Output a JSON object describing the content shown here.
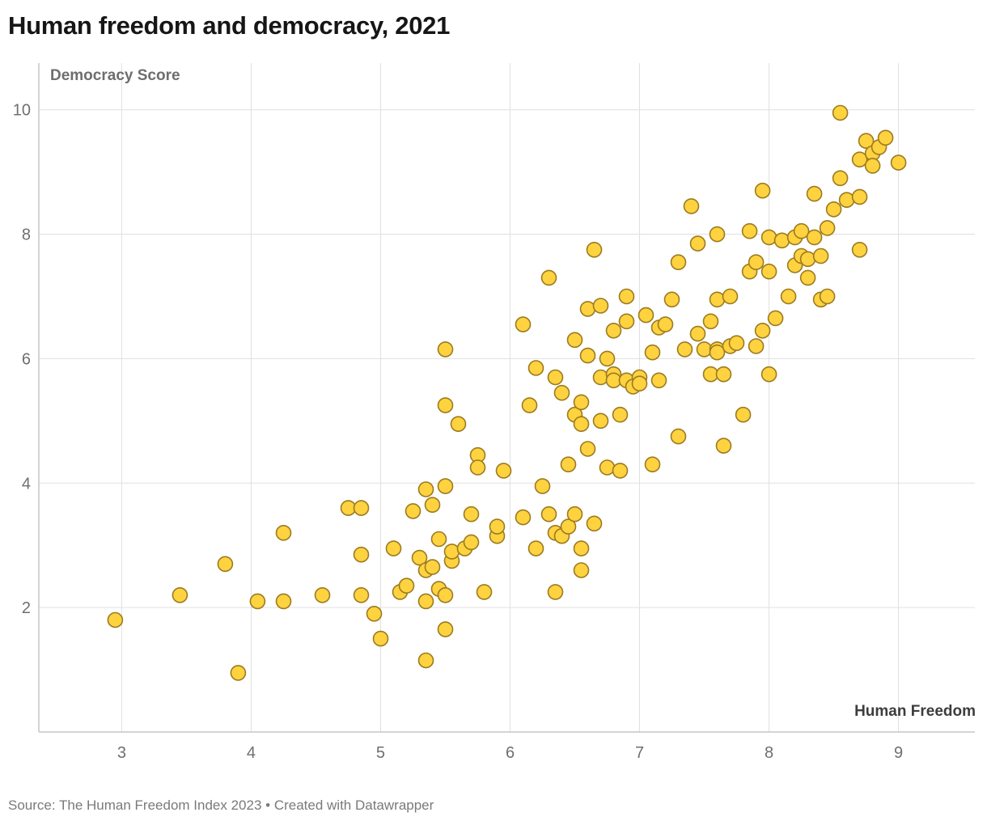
{
  "header": {
    "title": "Human freedom and democracy, 2021"
  },
  "axes": {
    "y_label": "Democracy Score",
    "x_label": "Human Freedom"
  },
  "footer": {
    "source": "Source: The Human Freedom Index 2023 • Created with Datawrapper"
  },
  "chart_data": {
    "type": "scatter",
    "title": "Human freedom and democracy, 2021",
    "xlabel": "Human Freedom",
    "ylabel": "Democracy Score",
    "xlim": [
      2.36,
      9.59
    ],
    "ylim": [
      0,
      10.75
    ],
    "x_ticks": [
      3,
      4,
      5,
      6,
      7,
      8,
      9
    ],
    "y_ticks": [
      2,
      4,
      6,
      8,
      10
    ],
    "grid": true,
    "legend": "none",
    "colors": {
      "marker_fill": "#FFD23F",
      "marker_stroke": "#9A7B20",
      "grid": "#e0e0e0",
      "axis": "#c6c6c6",
      "tick_text": "#6f6f6f"
    },
    "marker": {
      "radius": 9,
      "stroke_width": 1.6
    },
    "points": [
      [
        2.95,
        1.8
      ],
      [
        3.45,
        2.2
      ],
      [
        3.8,
        2.7
      ],
      [
        3.9,
        0.95
      ],
      [
        4.05,
        2.1
      ],
      [
        4.25,
        2.1
      ],
      [
        4.25,
        3.2
      ],
      [
        4.55,
        2.2
      ],
      [
        4.75,
        3.6
      ],
      [
        4.85,
        3.6
      ],
      [
        4.85,
        2.85
      ],
      [
        4.85,
        2.2
      ],
      [
        4.95,
        1.9
      ],
      [
        5.0,
        1.5
      ],
      [
        5.1,
        2.95
      ],
      [
        5.15,
        2.25
      ],
      [
        5.2,
        2.35
      ],
      [
        5.25,
        3.55
      ],
      [
        5.3,
        2.8
      ],
      [
        5.35,
        2.1
      ],
      [
        5.35,
        2.6
      ],
      [
        5.35,
        1.15
      ],
      [
        5.4,
        3.65
      ],
      [
        5.35,
        3.9
      ],
      [
        5.4,
        2.65
      ],
      [
        5.45,
        2.3
      ],
      [
        5.45,
        3.1
      ],
      [
        5.5,
        5.25
      ],
      [
        5.5,
        2.2
      ],
      [
        5.5,
        1.65
      ],
      [
        5.5,
        3.95
      ],
      [
        5.5,
        6.15
      ],
      [
        5.55,
        2.75
      ],
      [
        5.55,
        2.9
      ],
      [
        5.6,
        4.95
      ],
      [
        5.65,
        2.95
      ],
      [
        5.7,
        3.05
      ],
      [
        5.7,
        3.5
      ],
      [
        5.75,
        4.45
      ],
      [
        5.75,
        4.25
      ],
      [
        5.8,
        2.25
      ],
      [
        5.9,
        3.15
      ],
      [
        5.9,
        3.3
      ],
      [
        5.95,
        4.2
      ],
      [
        6.1,
        3.45
      ],
      [
        6.1,
        6.55
      ],
      [
        6.15,
        5.25
      ],
      [
        6.2,
        2.95
      ],
      [
        6.2,
        5.85
      ],
      [
        6.25,
        3.95
      ],
      [
        6.3,
        7.3
      ],
      [
        6.3,
        3.5
      ],
      [
        6.35,
        3.2
      ],
      [
        6.35,
        2.25
      ],
      [
        6.35,
        5.7
      ],
      [
        6.4,
        5.45
      ],
      [
        6.4,
        3.15
      ],
      [
        6.45,
        3.3
      ],
      [
        6.45,
        4.3
      ],
      [
        6.5,
        3.5
      ],
      [
        6.5,
        6.3
      ],
      [
        6.5,
        5.1
      ],
      [
        6.55,
        5.3
      ],
      [
        6.55,
        2.6
      ],
      [
        6.55,
        4.95
      ],
      [
        6.55,
        2.95
      ],
      [
        6.6,
        6.05
      ],
      [
        6.6,
        6.8
      ],
      [
        6.6,
        4.55
      ],
      [
        6.65,
        3.35
      ],
      [
        6.65,
        7.75
      ],
      [
        6.7,
        5.7
      ],
      [
        6.7,
        6.85
      ],
      [
        6.7,
        5.0
      ],
      [
        6.75,
        6.0
      ],
      [
        6.75,
        4.25
      ],
      [
        6.8,
        5.75
      ],
      [
        6.8,
        6.45
      ],
      [
        6.8,
        5.65
      ],
      [
        6.85,
        4.2
      ],
      [
        6.85,
        5.1
      ],
      [
        6.9,
        5.65
      ],
      [
        6.9,
        6.6
      ],
      [
        6.9,
        7.0
      ],
      [
        6.95,
        5.55
      ],
      [
        7.0,
        5.7
      ],
      [
        7.0,
        5.6
      ],
      [
        7.05,
        6.7
      ],
      [
        7.1,
        4.3
      ],
      [
        7.1,
        6.1
      ],
      [
        7.15,
        5.65
      ],
      [
        7.15,
        6.5
      ],
      [
        7.2,
        6.55
      ],
      [
        7.25,
        6.95
      ],
      [
        7.3,
        7.55
      ],
      [
        7.3,
        4.75
      ],
      [
        7.35,
        6.15
      ],
      [
        7.4,
        8.45
      ],
      [
        7.45,
        6.4
      ],
      [
        7.45,
        7.85
      ],
      [
        7.5,
        6.15
      ],
      [
        7.55,
        5.75
      ],
      [
        7.55,
        6.6
      ],
      [
        7.6,
        6.95
      ],
      [
        7.6,
        6.15
      ],
      [
        7.6,
        8.0
      ],
      [
        7.6,
        6.1
      ],
      [
        7.65,
        5.75
      ],
      [
        7.65,
        4.6
      ],
      [
        7.7,
        6.2
      ],
      [
        7.7,
        7.0
      ],
      [
        7.75,
        6.25
      ],
      [
        7.8,
        5.1
      ],
      [
        7.85,
        8.05
      ],
      [
        7.85,
        7.4
      ],
      [
        7.9,
        6.2
      ],
      [
        7.9,
        7.55
      ],
      [
        7.95,
        6.45
      ],
      [
        7.95,
        8.7
      ],
      [
        8.0,
        7.4
      ],
      [
        8.0,
        5.75
      ],
      [
        8.0,
        7.95
      ],
      [
        8.05,
        6.65
      ],
      [
        8.1,
        7.9
      ],
      [
        8.15,
        7.0
      ],
      [
        8.2,
        7.95
      ],
      [
        8.2,
        7.5
      ],
      [
        8.25,
        8.05
      ],
      [
        8.25,
        7.65
      ],
      [
        8.3,
        7.3
      ],
      [
        8.3,
        7.6
      ],
      [
        8.35,
        8.65
      ],
      [
        8.35,
        7.95
      ],
      [
        8.4,
        7.65
      ],
      [
        8.4,
        6.95
      ],
      [
        8.45,
        8.1
      ],
      [
        8.45,
        7.0
      ],
      [
        8.5,
        8.4
      ],
      [
        8.55,
        8.9
      ],
      [
        8.55,
        9.95
      ],
      [
        8.6,
        8.55
      ],
      [
        8.7,
        9.2
      ],
      [
        8.7,
        8.6
      ],
      [
        8.7,
        7.75
      ],
      [
        8.75,
        9.5
      ],
      [
        8.8,
        9.3
      ],
      [
        8.8,
        9.1
      ],
      [
        8.85,
        9.4
      ],
      [
        8.9,
        9.55
      ],
      [
        9.0,
        9.15
      ]
    ]
  }
}
